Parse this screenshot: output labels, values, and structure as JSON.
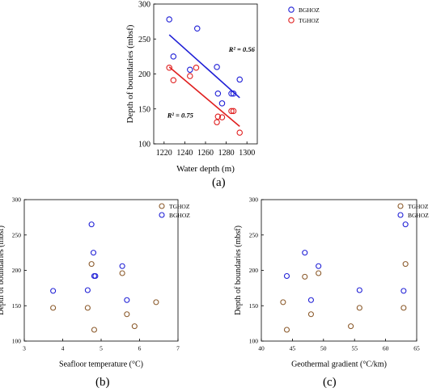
{
  "panel_labels": {
    "a": "(a)",
    "b": "(b)",
    "c": "(c)"
  },
  "chart_data": [
    {
      "type": "scatter",
      "panel": "(a)",
      "xlabel": "Water depth (m)",
      "ylabel": "Depth of boundaries (mbsf)",
      "xlim": [
        1210,
        1310
      ],
      "ylim": [
        100,
        300
      ],
      "xticks": [
        1220,
        1240,
        1260,
        1280,
        1300
      ],
      "yticks": [
        100,
        150,
        200,
        250,
        300
      ],
      "legend_position": "top-right",
      "grid": false,
      "series": [
        {
          "name": "BGHOZ",
          "color": "#1f1fd6",
          "points": [
            [
              1225,
              278
            ],
            [
              1229,
              225
            ],
            [
              1245,
              206
            ],
            [
              1252,
              265
            ],
            [
              1271,
              210
            ],
            [
              1272,
              172
            ],
            [
              1276,
              158
            ],
            [
              1285,
              172
            ],
            [
              1287,
              172
            ],
            [
              1293,
              192
            ]
          ],
          "fit": {
            "x": [
              1225,
              1293
            ],
            "y": [
              256,
              166
            ]
          },
          "r2_label": "R² = 0.56"
        },
        {
          "name": "TGHOZ",
          "color": "#e01f1f",
          "points": [
            [
              1225,
              209
            ],
            [
              1229,
              191
            ],
            [
              1245,
              197
            ],
            [
              1251,
              209
            ],
            [
              1271,
              131
            ],
            [
              1272,
              139
            ],
            [
              1276,
              138
            ],
            [
              1285,
              147
            ],
            [
              1287,
              147
            ],
            [
              1293,
              116
            ]
          ],
          "fit": {
            "x": [
              1225,
              1293
            ],
            "y": [
              210,
              125
            ]
          },
          "r2_label": "R² = 0.75"
        }
      ]
    },
    {
      "type": "scatter",
      "panel": "(b)",
      "xlabel": "Seafloor temperature (°C)",
      "ylabel": "Depth of boundaries (mbsf)",
      "xlim": [
        3,
        7
      ],
      "ylim": [
        100,
        300
      ],
      "xticks": [
        3,
        4,
        5,
        6,
        7
      ],
      "yticks": [
        100,
        150,
        200,
        250,
        300
      ],
      "legend_position": "top-right",
      "grid": false,
      "series": [
        {
          "name": "TGHOZ",
          "color": "#8b5a2b",
          "points": [
            [
              3.75,
              147
            ],
            [
              4.65,
              147
            ],
            [
              4.75,
              209
            ],
            [
              4.82,
              116
            ],
            [
              5.55,
              196
            ],
            [
              5.67,
              138
            ],
            [
              5.87,
              121
            ],
            [
              6.43,
              155
            ]
          ]
        },
        {
          "name": "BGHOZ",
          "color": "#1f1fd6",
          "points": [
            [
              3.75,
              171
            ],
            [
              4.65,
              172
            ],
            [
              4.75,
              265
            ],
            [
              4.8,
              225
            ],
            [
              4.82,
              192
            ],
            [
              4.85,
              192
            ],
            [
              5.55,
              206
            ],
            [
              5.67,
              158
            ]
          ]
        }
      ]
    },
    {
      "type": "scatter",
      "panel": "(c)",
      "xlabel": "Geothermal gradient (°C/km)",
      "ylabel": "Depth of boundaries (mbsf)",
      "xlim": [
        40,
        65
      ],
      "ylim": [
        100,
        300
      ],
      "xticks": [
        40,
        45,
        50,
        55,
        60,
        65
      ],
      "yticks": [
        100,
        150,
        200,
        250,
        300
      ],
      "legend_position": "top-right",
      "grid": false,
      "series": [
        {
          "name": "TGHOZ",
          "color": "#8b5a2b",
          "points": [
            [
              43.5,
              155
            ],
            [
              44.1,
              116
            ],
            [
              47,
              191
            ],
            [
              48,
              138
            ],
            [
              49.2,
              196
            ],
            [
              54.4,
              121
            ],
            [
              55.8,
              147
            ],
            [
              62.9,
              147
            ],
            [
              63.2,
              209
            ]
          ]
        },
        {
          "name": "BGHOZ",
          "color": "#1f1fd6",
          "points": [
            [
              44.1,
              192
            ],
            [
              47,
              225
            ],
            [
              48,
              158
            ],
            [
              49.2,
              206
            ],
            [
              55.8,
              172
            ],
            [
              62.9,
              171
            ],
            [
              63.2,
              265
            ]
          ]
        }
      ]
    }
  ]
}
